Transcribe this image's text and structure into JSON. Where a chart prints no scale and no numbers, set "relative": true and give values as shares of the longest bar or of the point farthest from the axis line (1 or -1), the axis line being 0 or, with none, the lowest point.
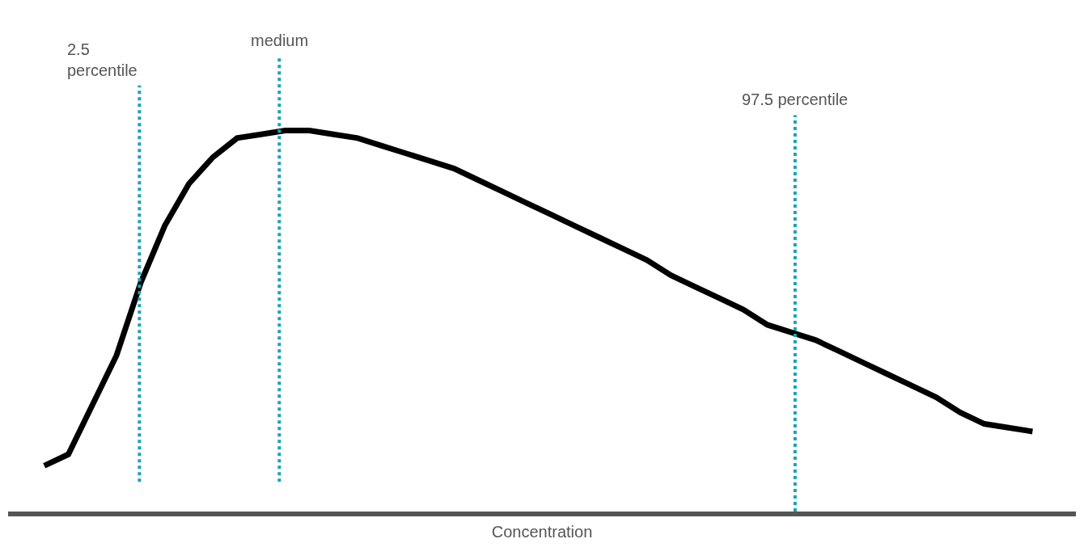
{
  "chart_data": {
    "type": "line",
    "relative": true,
    "xlabel": "Concentration",
    "categories": [
      null,
      null,
      null,
      null,
      null,
      null,
      null,
      null,
      null,
      null,
      null,
      null,
      null,
      null,
      null,
      null,
      null,
      null,
      null,
      null,
      null,
      null,
      null,
      null,
      null,
      null,
      null,
      null,
      null,
      null,
      null,
      null,
      null,
      null,
      null,
      null,
      null,
      null,
      null,
      null,
      null,
      null
    ],
    "series": [
      {
        "color": "#000000",
        "values": [
          0.12,
          0.15,
          0.28,
          0.41,
          0.6,
          0.75,
          0.86,
          0.93,
          0.98,
          0.99,
          1.0,
          1.0,
          0.99,
          0.98,
          0.96,
          0.94,
          0.92,
          0.9,
          0.87,
          0.84,
          0.81,
          0.78,
          0.75,
          0.72,
          0.69,
          0.66,
          0.62,
          0.59,
          0.56,
          0.53,
          0.49,
          0.47,
          0.45,
          0.42,
          0.39,
          0.36,
          0.33,
          0.3,
          0.26,
          0.23,
          0.22,
          0.21
        ]
      }
    ],
    "annotations": [
      "2.5\npercentile",
      "medium",
      "97.5 percentile"
    ],
    "marker": "none",
    "line_style": "solid"
  }
}
